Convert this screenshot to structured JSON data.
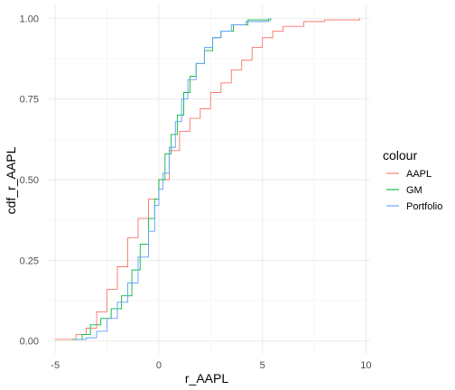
{
  "chart_data": {
    "type": "line",
    "xlabel": "r_AAPL",
    "ylabel": "cdf_r_AAPL",
    "xlim": [
      -5.4,
      10.2
    ],
    "ylim": [
      -0.04,
      1.04
    ],
    "x_ticks": [
      -5,
      0,
      5,
      10
    ],
    "y_ticks": [
      0.0,
      0.25,
      0.5,
      0.75,
      1.0
    ],
    "x_tick_labels": [
      "-5",
      "0",
      "5",
      "10"
    ],
    "y_tick_labels": [
      "0.00",
      "0.25",
      "0.50",
      "0.75",
      "1.00"
    ],
    "grid": true,
    "legend": {
      "title": "colour",
      "position": "right"
    },
    "series": [
      {
        "name": "AAPL",
        "color": "#F8766D",
        "points": [
          [
            -5.0,
            0.005
          ],
          [
            -4.0,
            0.02
          ],
          [
            -3.5,
            0.04
          ],
          [
            -3.0,
            0.09
          ],
          [
            -2.5,
            0.16
          ],
          [
            -2.0,
            0.23
          ],
          [
            -1.5,
            0.32
          ],
          [
            -1.0,
            0.38
          ],
          [
            -0.5,
            0.44
          ],
          [
            0.0,
            0.5
          ],
          [
            0.5,
            0.59
          ],
          [
            1.0,
            0.65
          ],
          [
            1.5,
            0.69
          ],
          [
            2.0,
            0.72
          ],
          [
            2.5,
            0.77
          ],
          [
            3.0,
            0.8
          ],
          [
            3.5,
            0.84
          ],
          [
            4.0,
            0.87
          ],
          [
            4.5,
            0.91
          ],
          [
            5.0,
            0.94
          ],
          [
            5.5,
            0.96
          ],
          [
            6.0,
            0.975
          ],
          [
            7.0,
            0.99
          ],
          [
            8.0,
            0.995
          ],
          [
            9.7,
            1.0
          ]
        ]
      },
      {
        "name": "GM",
        "color": "#00BA38",
        "points": [
          [
            -4.2,
            0.005
          ],
          [
            -3.7,
            0.02
          ],
          [
            -3.3,
            0.05
          ],
          [
            -2.8,
            0.07
          ],
          [
            -2.3,
            0.1
          ],
          [
            -1.8,
            0.14
          ],
          [
            -1.3,
            0.22
          ],
          [
            -0.9,
            0.3
          ],
          [
            -0.5,
            0.38
          ],
          [
            -0.2,
            0.44
          ],
          [
            0.0,
            0.5
          ],
          [
            0.3,
            0.58
          ],
          [
            0.6,
            0.64
          ],
          [
            0.9,
            0.7
          ],
          [
            1.2,
            0.77
          ],
          [
            1.5,
            0.82
          ],
          [
            1.8,
            0.86
          ],
          [
            2.2,
            0.9
          ],
          [
            2.6,
            0.94
          ],
          [
            3.0,
            0.96
          ],
          [
            3.6,
            0.98
          ],
          [
            4.3,
            0.995
          ],
          [
            5.4,
            1.0
          ]
        ]
      },
      {
        "name": "Portfolio",
        "color": "#619CFF",
        "points": [
          [
            -4.0,
            0.005
          ],
          [
            -3.5,
            0.01
          ],
          [
            -3.0,
            0.03
          ],
          [
            -2.5,
            0.07
          ],
          [
            -2.0,
            0.12
          ],
          [
            -1.5,
            0.18
          ],
          [
            -1.0,
            0.26
          ],
          [
            -0.5,
            0.34
          ],
          [
            -0.2,
            0.42
          ],
          [
            0.0,
            0.47
          ],
          [
            0.2,
            0.52
          ],
          [
            0.5,
            0.6
          ],
          [
            0.8,
            0.68
          ],
          [
            1.1,
            0.75
          ],
          [
            1.4,
            0.81
          ],
          [
            1.8,
            0.86
          ],
          [
            2.2,
            0.91
          ],
          [
            2.6,
            0.94
          ],
          [
            3.0,
            0.96
          ],
          [
            3.5,
            0.98
          ],
          [
            4.2,
            0.99
          ],
          [
            5.3,
            1.0
          ]
        ]
      }
    ]
  }
}
